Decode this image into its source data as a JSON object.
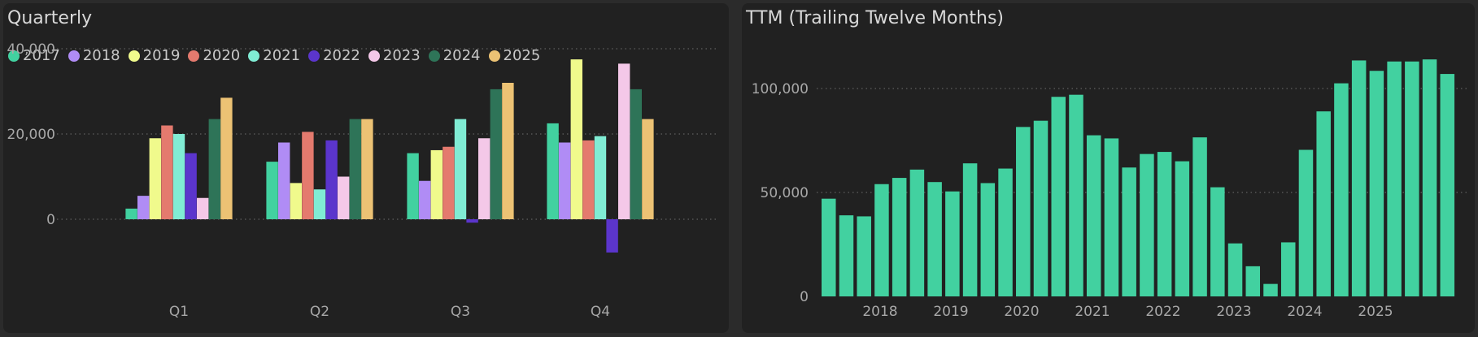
{
  "chart_data": [
    {
      "type": "bar",
      "title": "Quarterly",
      "categories": [
        "Q1",
        "Q2",
        "Q3",
        "Q4"
      ],
      "yticks": [
        "0",
        "20,000",
        "40,000"
      ],
      "ylim": [
        -8500,
        40000
      ],
      "grid": true,
      "legend": "top-left",
      "series": [
        {
          "name": "2017",
          "color": "#42d1a0",
          "values": [
            2500,
            13500,
            15500,
            22500
          ]
        },
        {
          "name": "2018",
          "color": "#b08cf5",
          "values": [
            5500,
            18000,
            9000,
            18000
          ]
        },
        {
          "name": "2019",
          "color": "#f0fa8c",
          "values": [
            19000,
            8500,
            16200,
            37500
          ]
        },
        {
          "name": "2020",
          "color": "#e47a6e",
          "values": [
            22000,
            20500,
            17000,
            18500
          ]
        },
        {
          "name": "2021",
          "color": "#80ecd4",
          "values": [
            20000,
            7000,
            23500,
            19500
          ]
        },
        {
          "name": "2022",
          "color": "#5b35cc",
          "values": [
            15500,
            18500,
            -800,
            -7800
          ]
        },
        {
          "name": "2023",
          "color": "#f4c8e8",
          "values": [
            5000,
            10000,
            19000,
            36500
          ]
        },
        {
          "name": "2024",
          "color": "#2e7458",
          "values": [
            23500,
            23500,
            30500,
            30500
          ]
        },
        {
          "name": "2025",
          "color": "#ecc274",
          "values": [
            28500,
            23500,
            32000,
            23500
          ]
        }
      ]
    },
    {
      "type": "bar",
      "title": "TTM (Trailing Twelve Months)",
      "color": "#42d1a0",
      "xticks": [
        "2018",
        "2019",
        "2020",
        "2021",
        "2022",
        "2023",
        "2024",
        "2025"
      ],
      "yticks": [
        "0",
        "50,000",
        "100,000"
      ],
      "ylim": [
        0,
        115000
      ],
      "grid": true,
      "values": [
        47000,
        39000,
        38500,
        54000,
        57000,
        61000,
        55000,
        50500,
        64000,
        54500,
        61500,
        81500,
        84500,
        96000,
        97000,
        77500,
        76000,
        62000,
        68500,
        69500,
        65000,
        76500,
        52500,
        25500,
        14500,
        6000,
        26000,
        70500,
        89000,
        102500,
        113500,
        108500,
        113000,
        113000,
        114000,
        107000
      ]
    }
  ]
}
